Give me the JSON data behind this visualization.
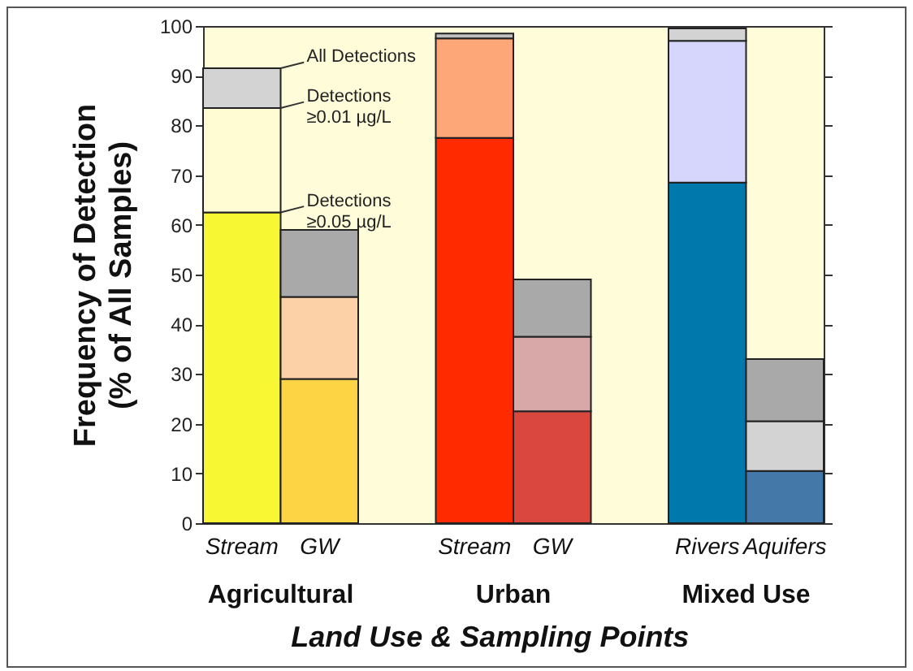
{
  "chart_data": {
    "type": "bar",
    "stacked": true,
    "categories": [
      "Stream",
      "GW",
      "Stream",
      "GW",
      "Rivers",
      "Aquifers"
    ],
    "xlabel": "Land Use & Sampling Points",
    "ylabel": "Frequency of Detection\n(% of All Samples)",
    "annotations": [
      "Agricultural",
      "Urban",
      "Mixed Use"
    ],
    "ylim": [
      0,
      100
    ],
    "yticks": [
      0,
      10,
      20,
      30,
      40,
      50,
      60,
      70,
      80,
      90,
      100
    ],
    "grid": false,
    "series": [
      {
        "name": "Detections\n≥0.05 µg/L",
        "colors": [
          "#f7f734",
          "#fdd444",
          "#ff2a00",
          "#d9473f",
          "#0078ac",
          "#4478a8"
        ],
        "values": [
          62.5,
          29,
          77.5,
          22.5,
          68.5,
          10.5
        ]
      },
      {
        "name": "Detections\n≥0.01 µg/L",
        "colors": [
          "#fffcd3",
          "#fdd1a8",
          "#fda779",
          "#d8a8a8",
          "#d6d6fc",
          "#d3d3d3"
        ],
        "values": [
          21,
          16.5,
          20,
          15,
          28.5,
          10
        ]
      },
      {
        "name": "All Detections",
        "colors": [
          "#d3d3d3",
          "#a9a9a9",
          "#c0c0c0",
          "#a9a9a9",
          "#d3d3d3",
          "#a9a9a9"
        ],
        "values": [
          8,
          13.5,
          1,
          11.5,
          2.5,
          12.5
        ]
      }
    ]
  }
}
